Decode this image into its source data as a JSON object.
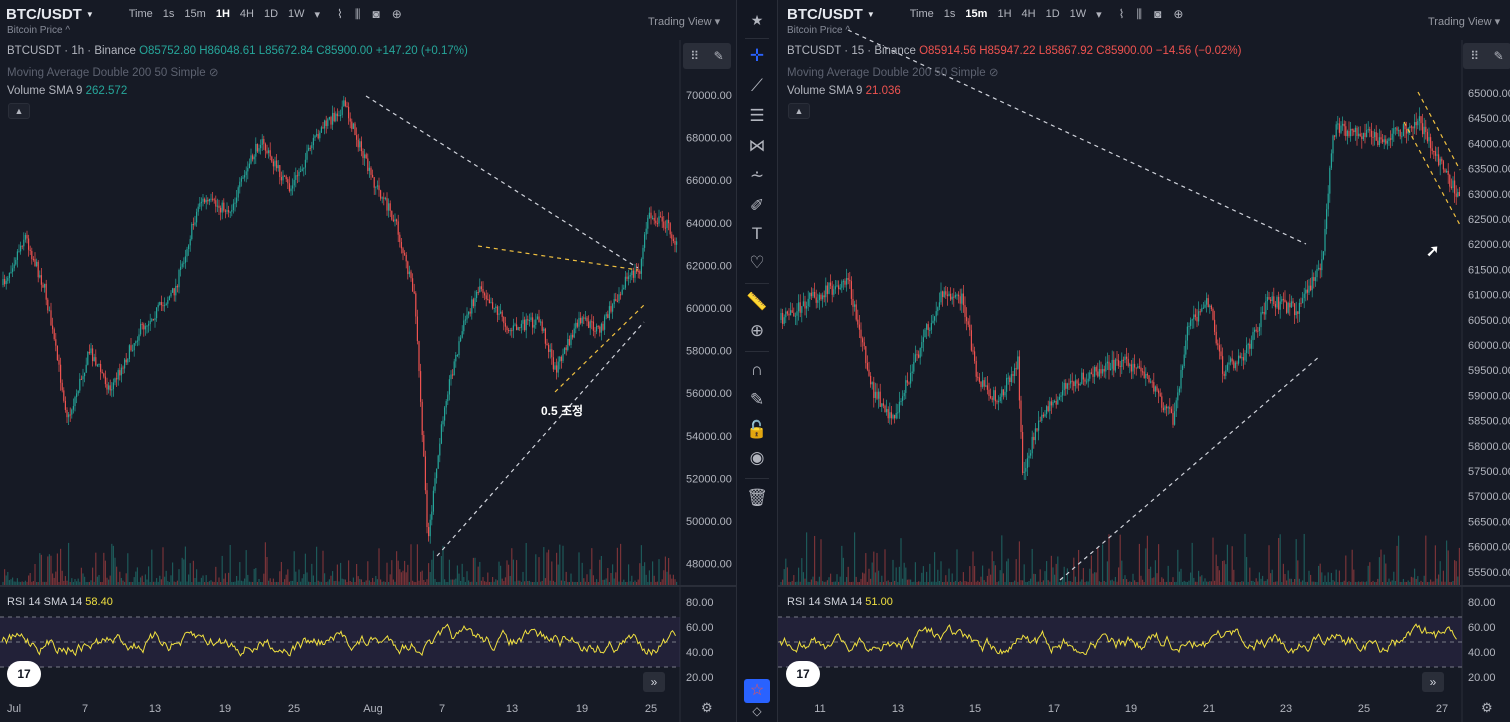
{
  "left": {
    "symbol": "BTC/USDT",
    "subtitle": "Bitcoin Price ^",
    "intervals": [
      "Time",
      "1s",
      "15m",
      "1H",
      "4H",
      "1D",
      "1W"
    ],
    "active_interval": "1H",
    "tools": [
      "chart-type-icon",
      "candles-icon",
      "camera-icon",
      "plus-icon"
    ],
    "tv_label": "Trading View",
    "legend_symbol": "BTCUSDT · 1h · Binance",
    "ohlc": {
      "o": "O85752.80",
      "h": "H86048.61",
      "l": "L85672.84",
      "c": "C85900.00",
      "chg": "+147.20 (+0.17%)"
    },
    "ma_label": "Moving Average Double 200 50 Simple",
    "vol_label": "Volume SMA 9",
    "vol_value": "262.572",
    "rsi_label": "RSI 14 SMA 14",
    "rsi_value": "58.40",
    "annotation": "0.5 조정",
    "price_ticks": [
      "70000.00",
      "68000.00",
      "66000.00",
      "64000.00",
      "62000.00",
      "60000.00",
      "58000.00",
      "56000.00",
      "54000.00",
      "52000.00",
      "50000.00",
      "48000.00"
    ],
    "rsi_ticks": [
      "80.00",
      "60.00",
      "40.00",
      "20.00"
    ],
    "x_ticks": [
      "Jul",
      "7",
      "13",
      "19",
      "25",
      "Aug",
      "7",
      "13",
      "19",
      "25"
    ]
  },
  "right": {
    "symbol": "BTC/USDT",
    "subtitle": "Bitcoin Price ^",
    "intervals": [
      "Time",
      "1s",
      "15m",
      "1H",
      "4H",
      "1D",
      "1W"
    ],
    "active_interval": "15m",
    "tv_label": "Trading View",
    "legend_symbol": "BTCUSDT · 15 · Binance",
    "ohlc": {
      "o": "O85914.56",
      "h": "H85947.22",
      "l": "L85867.92",
      "c": "C85900.00",
      "chg": "−14.56 (−0.02%)"
    },
    "ma_label": "Moving Average Double 200 50 Simple",
    "vol_label": "Volume SMA 9",
    "vol_value": "21.036",
    "rsi_label": "RSI 14 SMA 14",
    "rsi_value": "51.00",
    "price_ticks": [
      "65000.00",
      "64500.00",
      "64000.00",
      "63500.00",
      "63000.00",
      "62500.00",
      "62000.00",
      "61500.00",
      "61000.00",
      "60500.00",
      "60000.00",
      "59500.00",
      "59000.00",
      "58500.00",
      "58000.00",
      "57500.00",
      "57000.00",
      "56500.00",
      "56000.00",
      "55500.00"
    ],
    "rsi_ticks": [
      "80.00",
      "60.00",
      "40.00",
      "20.00"
    ],
    "x_ticks": [
      "11",
      "13",
      "15",
      "17",
      "19",
      "21",
      "23",
      "25",
      "27"
    ]
  },
  "logo_text": "17",
  "colors": {
    "up": "#26a69a",
    "down": "#ef5350",
    "rsi": "#f0e040",
    "bg": "#161a25",
    "accent": "#2962ff"
  }
}
